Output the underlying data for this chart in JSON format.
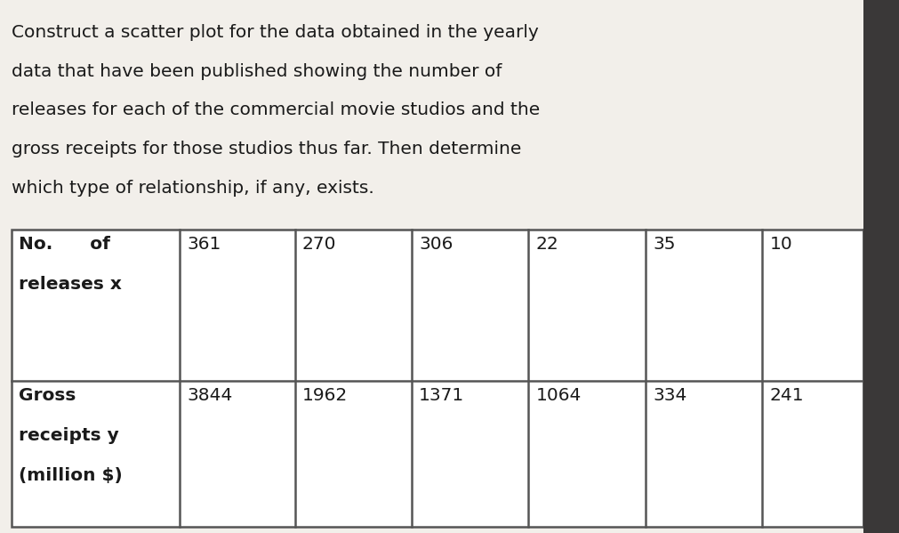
{
  "para_lines": [
    "Construct a scatter plot for the data obtained in the yearly",
    "data that have been published showing the number of",
    "releases for each of the commercial movie studios and the",
    "gross receipts for those studios thus far. Then determine",
    "which type of relationship, if any, exists."
  ],
  "row1_label_lines": [
    "No.      of",
    "releases x"
  ],
  "row2_label_lines": [
    "Gross",
    "receipts y",
    "(million $)"
  ],
  "x_values": [
    361,
    270,
    306,
    22,
    35,
    10
  ],
  "y_values": [
    3844,
    1962,
    1371,
    1064,
    334,
    241
  ],
  "bg_color": "#f2efea",
  "table_bg": "#ffffff",
  "text_color": "#1a1a1a",
  "border_color": "#555555",
  "dark_strip_color": "#3a3838",
  "font_size_para": 14.5,
  "font_size_table": 14.5,
  "fig_width": 10.11,
  "fig_height": 5.99
}
